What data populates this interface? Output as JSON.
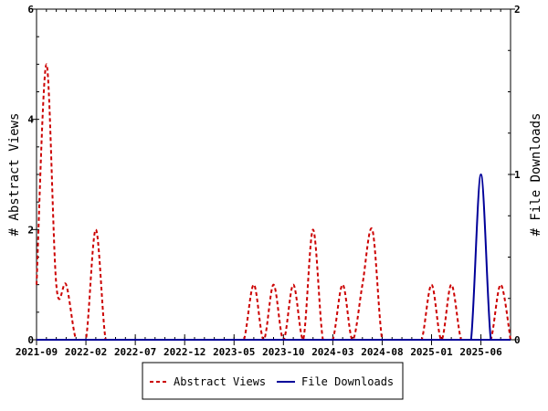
{
  "chart_data": {
    "type": "line",
    "x_tick_labels": [
      "2021-09",
      "2022-02",
      "2022-07",
      "2022-12",
      "2023-05",
      "2023-10",
      "2024-03",
      "2024-08",
      "2025-01",
      "2025-06"
    ],
    "x_tick_month_index": [
      0,
      5,
      10,
      15,
      20,
      25,
      30,
      35,
      40,
      45
    ],
    "x_range": [
      0,
      48
    ],
    "y_left": {
      "label": "# Abstract Views",
      "range": [
        0,
        6
      ],
      "ticks": [
        "0",
        "2",
        "4",
        "6"
      ],
      "tick_values": [
        0,
        2,
        4,
        6
      ]
    },
    "y_right": {
      "label": "# File Downloads",
      "range": [
        0,
        2
      ],
      "ticks": [
        "0",
        "1",
        "2"
      ],
      "tick_values": [
        0,
        1,
        2
      ]
    },
    "series": [
      {
        "name": "Abstract Views",
        "axis": "left",
        "color": "#cc0000",
        "dash": true,
        "points": [
          [
            0,
            1
          ],
          [
            1,
            5
          ],
          [
            2,
            1
          ],
          [
            3,
            1
          ],
          [
            4,
            0
          ],
          [
            5,
            0
          ],
          [
            6,
            2
          ],
          [
            7,
            0
          ],
          [
            8,
            0
          ],
          [
            9,
            0
          ],
          [
            10,
            0
          ],
          [
            11,
            0
          ],
          [
            12,
            0
          ],
          [
            13,
            0
          ],
          [
            14,
            0
          ],
          [
            15,
            0
          ],
          [
            16,
            0
          ],
          [
            17,
            0
          ],
          [
            18,
            0
          ],
          [
            19,
            0
          ],
          [
            20,
            0
          ],
          [
            21,
            0
          ],
          [
            22,
            1
          ],
          [
            23,
            0
          ],
          [
            24,
            1
          ],
          [
            25,
            0
          ],
          [
            26,
            1
          ],
          [
            27,
            0
          ],
          [
            28,
            2
          ],
          [
            29,
            0
          ],
          [
            30,
            0
          ],
          [
            31,
            1
          ],
          [
            32,
            0
          ],
          [
            33,
            1
          ],
          [
            34,
            2
          ],
          [
            35,
            0
          ],
          [
            36,
            0
          ],
          [
            37,
            0
          ],
          [
            38,
            0
          ],
          [
            39,
            0
          ],
          [
            40,
            1
          ],
          [
            41,
            0
          ],
          [
            42,
            1
          ],
          [
            43,
            0
          ],
          [
            44,
            0
          ],
          [
            45,
            0
          ],
          [
            46,
            0
          ],
          [
            47,
            1
          ],
          [
            48,
            0
          ]
        ]
      },
      {
        "name": "File Downloads",
        "axis": "right",
        "color": "#000099",
        "dash": false,
        "points": [
          [
            0,
            0
          ],
          [
            43,
            0
          ],
          [
            44,
            0
          ],
          [
            45,
            1
          ],
          [
            46,
            0
          ],
          [
            47,
            0
          ],
          [
            48,
            0
          ]
        ]
      }
    ],
    "legend": {
      "placement": "bottom-center",
      "entries": [
        "Abstract Views",
        "File Downloads"
      ]
    },
    "grid": false
  }
}
